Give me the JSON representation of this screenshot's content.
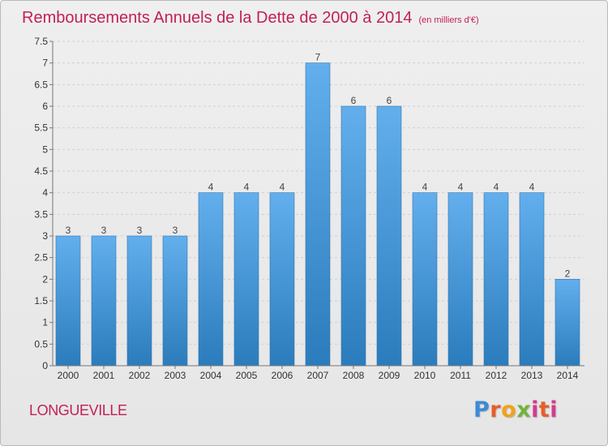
{
  "header": {
    "title": "Remboursements Annuels de la Dette de 2000 à 2014",
    "subtitle": "(en milliers d'€)"
  },
  "footer": {
    "town": "LONGUEVILLE",
    "brand": "Proxiti"
  },
  "colors": {
    "title": "#c21f5a",
    "bar_top": "#60acec",
    "bar_bottom": "#2d7fbe",
    "grid": "#d0d0d0"
  },
  "chart_data": {
    "type": "bar",
    "title": "Remboursements Annuels de la Dette de 2000 à 2014",
    "subtitle": "(en milliers d'€)",
    "xlabel": "",
    "ylabel": "",
    "ylim": [
      0,
      7.5
    ],
    "ytick_labels": [
      "0",
      "0.5",
      "1",
      "1.5",
      "2",
      "2.5",
      "3",
      "3.5",
      "4",
      "4.5",
      "5",
      "5.5",
      "6",
      "6.5",
      "7",
      "7.5"
    ],
    "yticks": [
      0,
      0.5,
      1,
      1.5,
      2,
      2.5,
      3,
      3.5,
      4,
      4.5,
      5,
      5.5,
      6,
      6.5,
      7,
      7.5
    ],
    "categories": [
      "2000",
      "2001",
      "2002",
      "2003",
      "2004",
      "2005",
      "2006",
      "2007",
      "2008",
      "2009",
      "2010",
      "2011",
      "2012",
      "2013",
      "2014"
    ],
    "values": [
      3,
      3,
      3,
      3,
      4,
      4,
      4,
      7,
      6,
      6,
      4,
      4,
      4,
      4,
      2
    ],
    "value_labels": [
      "3",
      "3",
      "3",
      "3",
      "4",
      "4",
      "4",
      "7",
      "6",
      "6",
      "4",
      "4",
      "4",
      "4",
      "2"
    ],
    "grid": true,
    "legend": "none"
  }
}
